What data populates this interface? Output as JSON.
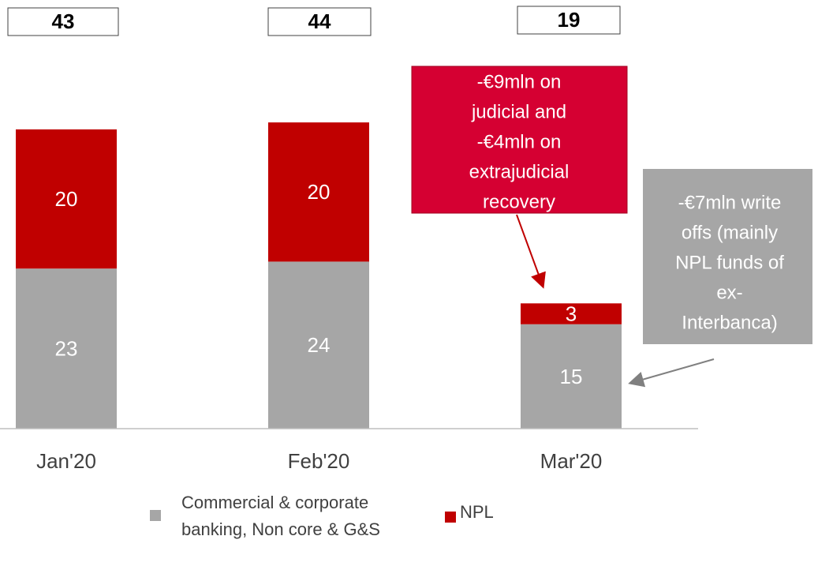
{
  "chart_data": {
    "type": "stacked_bar",
    "categories": [
      "Jan'20",
      "Feb'20",
      "Mar'20"
    ],
    "series": [
      {
        "name": "Commercial & corporate banking, Non core & G&S",
        "color": "#a6a6a6",
        "values": [
          23,
          24,
          15
        ]
      },
      {
        "name": "NPL",
        "color": "#c00000",
        "values": [
          20,
          20,
          3
        ]
      }
    ],
    "totals": [
      43,
      44,
      19
    ],
    "ylim": [
      0,
      49
    ],
    "annotations": [
      {
        "lines": [
          "-€9mln on",
          "judicial and",
          "-€4mln on",
          "extrajudicial",
          "recovery"
        ],
        "color": "#d50032"
      },
      {
        "lines": [
          "-€7mln write",
          "offs (mainly",
          "NPL funds of",
          "ex-",
          "Interbanca)"
        ],
        "color": "#a6a6a6"
      }
    ]
  }
}
